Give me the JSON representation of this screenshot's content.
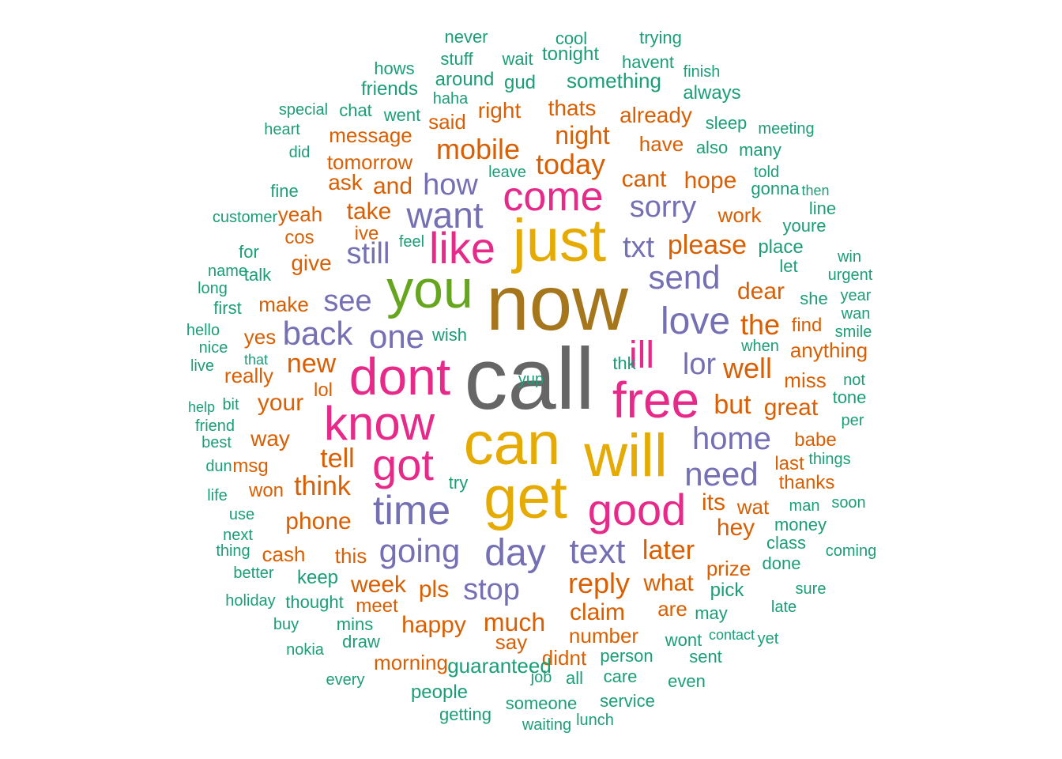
{
  "palette": {
    "teal": "#1b9e77",
    "orange": "#d95f02",
    "purple": "#7570b3",
    "pink": "#e7298a",
    "green": "#66a61e",
    "gold": "#e6ab02",
    "brown": "#a6761d",
    "gray": "#666666"
  },
  "words": [
    {
      "text": "call",
      "color": "gray"
    },
    {
      "text": "now",
      "color": "brown"
    },
    {
      "text": "can",
      "color": "gold"
    },
    {
      "text": "get",
      "color": "gold"
    },
    {
      "text": "will",
      "color": "gold"
    },
    {
      "text": "just",
      "color": "gold"
    },
    {
      "text": "you",
      "color": "green"
    },
    {
      "text": "dont",
      "color": "pink"
    },
    {
      "text": "free",
      "color": "pink"
    },
    {
      "text": "know",
      "color": "pink"
    },
    {
      "text": "got",
      "color": "pink"
    },
    {
      "text": "good",
      "color": "pink"
    },
    {
      "text": "like",
      "color": "pink"
    },
    {
      "text": "come",
      "color": "pink"
    },
    {
      "text": "ill",
      "color": "pink"
    },
    {
      "text": "time",
      "color": "purple"
    },
    {
      "text": "day",
      "color": "purple"
    },
    {
      "text": "love",
      "color": "purple"
    },
    {
      "text": "want",
      "color": "purple"
    },
    {
      "text": "going",
      "color": "purple"
    },
    {
      "text": "text",
      "color": "purple"
    },
    {
      "text": "need",
      "color": "purple"
    },
    {
      "text": "send",
      "color": "purple"
    },
    {
      "text": "home",
      "color": "purple"
    },
    {
      "text": "back",
      "color": "purple"
    },
    {
      "text": "stop",
      "color": "purple"
    },
    {
      "text": "one",
      "color": "purple"
    },
    {
      "text": "sorry",
      "color": "purple"
    },
    {
      "text": "how",
      "color": "purple"
    },
    {
      "text": "see",
      "color": "purple"
    },
    {
      "text": "still",
      "color": "purple"
    },
    {
      "text": "txt",
      "color": "purple"
    },
    {
      "text": "lor",
      "color": "purple"
    },
    {
      "text": "mobile",
      "color": "orange"
    },
    {
      "text": "reply",
      "color": "orange"
    },
    {
      "text": "today",
      "color": "orange"
    },
    {
      "text": "night",
      "color": "orange"
    },
    {
      "text": "please",
      "color": "orange"
    },
    {
      "text": "well",
      "color": "orange"
    },
    {
      "text": "the",
      "color": "orange"
    },
    {
      "text": "later",
      "color": "orange"
    },
    {
      "text": "think",
      "color": "orange"
    },
    {
      "text": "tell",
      "color": "orange"
    },
    {
      "text": "new",
      "color": "orange"
    },
    {
      "text": "phone",
      "color": "orange"
    },
    {
      "text": "much",
      "color": "orange"
    },
    {
      "text": "claim",
      "color": "orange"
    },
    {
      "text": "happy",
      "color": "orange"
    },
    {
      "text": "great",
      "color": "orange"
    },
    {
      "text": "but",
      "color": "orange"
    },
    {
      "text": "cant",
      "color": "orange"
    },
    {
      "text": "hope",
      "color": "orange"
    },
    {
      "text": "week",
      "color": "orange"
    },
    {
      "text": "what",
      "color": "orange"
    },
    {
      "text": "your",
      "color": "orange"
    },
    {
      "text": "dear",
      "color": "orange"
    },
    {
      "text": "take",
      "color": "orange"
    },
    {
      "text": "hey",
      "color": "orange"
    },
    {
      "text": "its",
      "color": "orange"
    },
    {
      "text": "work",
      "color": "orange"
    },
    {
      "text": "thats",
      "color": "orange"
    },
    {
      "text": "right",
      "color": "orange"
    },
    {
      "text": "message",
      "color": "orange"
    },
    {
      "text": "already",
      "color": "orange"
    },
    {
      "text": "have",
      "color": "orange"
    },
    {
      "text": "said",
      "color": "orange"
    },
    {
      "text": "tomorrow",
      "color": "orange"
    },
    {
      "text": "and",
      "color": "orange"
    },
    {
      "text": "ask",
      "color": "orange"
    },
    {
      "text": "yeah",
      "color": "orange"
    },
    {
      "text": "give",
      "color": "orange"
    },
    {
      "text": "make",
      "color": "orange"
    },
    {
      "text": "cos",
      "color": "orange"
    },
    {
      "text": "ive",
      "color": "orange"
    },
    {
      "text": "yes",
      "color": "orange"
    },
    {
      "text": "really",
      "color": "orange"
    },
    {
      "text": "lol",
      "color": "orange"
    },
    {
      "text": "way",
      "color": "orange"
    },
    {
      "text": "msg",
      "color": "orange"
    },
    {
      "text": "won",
      "color": "orange"
    },
    {
      "text": "cash",
      "color": "orange"
    },
    {
      "text": "this",
      "color": "orange"
    },
    {
      "text": "pls",
      "color": "orange"
    },
    {
      "text": "meet",
      "color": "orange"
    },
    {
      "text": "say",
      "color": "orange"
    },
    {
      "text": "number",
      "color": "orange"
    },
    {
      "text": "didnt",
      "color": "orange"
    },
    {
      "text": "morning",
      "color": "orange"
    },
    {
      "text": "are",
      "color": "orange"
    },
    {
      "text": "prize",
      "color": "orange"
    },
    {
      "text": "wat",
      "color": "orange"
    },
    {
      "text": "miss",
      "color": "orange"
    },
    {
      "text": "find",
      "color": "orange"
    },
    {
      "text": "anything",
      "color": "orange"
    },
    {
      "text": "babe",
      "color": "orange"
    },
    {
      "text": "last",
      "color": "orange"
    },
    {
      "text": "thanks",
      "color": "orange"
    },
    {
      "text": "never",
      "color": "teal"
    },
    {
      "text": "cool",
      "color": "teal"
    },
    {
      "text": "trying",
      "color": "teal"
    },
    {
      "text": "stuff",
      "color": "teal"
    },
    {
      "text": "wait",
      "color": "teal"
    },
    {
      "text": "tonight",
      "color": "teal"
    },
    {
      "text": "havent",
      "color": "teal"
    },
    {
      "text": "hows",
      "color": "teal"
    },
    {
      "text": "finish",
      "color": "teal"
    },
    {
      "text": "around",
      "color": "teal"
    },
    {
      "text": "gud",
      "color": "teal"
    },
    {
      "text": "something",
      "color": "teal"
    },
    {
      "text": "friends",
      "color": "teal"
    },
    {
      "text": "always",
      "color": "teal"
    },
    {
      "text": "haha",
      "color": "teal"
    },
    {
      "text": "special",
      "color": "teal"
    },
    {
      "text": "chat",
      "color": "teal"
    },
    {
      "text": "went",
      "color": "teal"
    },
    {
      "text": "sleep",
      "color": "teal"
    },
    {
      "text": "heart",
      "color": "teal"
    },
    {
      "text": "meeting",
      "color": "teal"
    },
    {
      "text": "also",
      "color": "teal"
    },
    {
      "text": "many",
      "color": "teal"
    },
    {
      "text": "did",
      "color": "teal"
    },
    {
      "text": "leave",
      "color": "teal"
    },
    {
      "text": "told",
      "color": "teal"
    },
    {
      "text": "fine",
      "color": "teal"
    },
    {
      "text": "gonna",
      "color": "teal"
    },
    {
      "text": "then",
      "color": "teal"
    },
    {
      "text": "line",
      "color": "teal"
    },
    {
      "text": "customer",
      "color": "teal"
    },
    {
      "text": "youre",
      "color": "teal"
    },
    {
      "text": "feel",
      "color": "teal"
    },
    {
      "text": "for",
      "color": "teal"
    },
    {
      "text": "place",
      "color": "teal"
    },
    {
      "text": "win",
      "color": "teal"
    },
    {
      "text": "name",
      "color": "teal"
    },
    {
      "text": "talk",
      "color": "teal"
    },
    {
      "text": "let",
      "color": "teal"
    },
    {
      "text": "urgent",
      "color": "teal"
    },
    {
      "text": "long",
      "color": "teal"
    },
    {
      "text": "year",
      "color": "teal"
    },
    {
      "text": "she",
      "color": "teal"
    },
    {
      "text": "first",
      "color": "teal"
    },
    {
      "text": "wan",
      "color": "teal"
    },
    {
      "text": "smile",
      "color": "teal"
    },
    {
      "text": "hello",
      "color": "teal"
    },
    {
      "text": "wish",
      "color": "teal"
    },
    {
      "text": "nice",
      "color": "teal"
    },
    {
      "text": "when",
      "color": "teal"
    },
    {
      "text": "that",
      "color": "teal"
    },
    {
      "text": "live",
      "color": "teal"
    },
    {
      "text": "thk",
      "color": "teal"
    },
    {
      "text": "not",
      "color": "teal"
    },
    {
      "text": "tone",
      "color": "teal"
    },
    {
      "text": "help",
      "color": "teal"
    },
    {
      "text": "bit",
      "color": "teal"
    },
    {
      "text": "per",
      "color": "teal"
    },
    {
      "text": "friend",
      "color": "teal"
    },
    {
      "text": "best",
      "color": "teal"
    },
    {
      "text": "things",
      "color": "teal"
    },
    {
      "text": "dun",
      "color": "teal"
    },
    {
      "text": "try",
      "color": "teal"
    },
    {
      "text": "life",
      "color": "teal"
    },
    {
      "text": "man",
      "color": "teal"
    },
    {
      "text": "soon",
      "color": "teal"
    },
    {
      "text": "use",
      "color": "teal"
    },
    {
      "text": "money",
      "color": "teal"
    },
    {
      "text": "next",
      "color": "teal"
    },
    {
      "text": "class",
      "color": "teal"
    },
    {
      "text": "thing",
      "color": "teal"
    },
    {
      "text": "coming",
      "color": "teal"
    },
    {
      "text": "better",
      "color": "teal"
    },
    {
      "text": "done",
      "color": "teal"
    },
    {
      "text": "keep",
      "color": "teal"
    },
    {
      "text": "pick",
      "color": "teal"
    },
    {
      "text": "sure",
      "color": "teal"
    },
    {
      "text": "holiday",
      "color": "teal"
    },
    {
      "text": "thought",
      "color": "teal"
    },
    {
      "text": "late",
      "color": "teal"
    },
    {
      "text": "may",
      "color": "teal"
    },
    {
      "text": "buy",
      "color": "teal"
    },
    {
      "text": "mins",
      "color": "teal"
    },
    {
      "text": "contact",
      "color": "teal"
    },
    {
      "text": "yet",
      "color": "teal"
    },
    {
      "text": "draw",
      "color": "teal"
    },
    {
      "text": "wont",
      "color": "teal"
    },
    {
      "text": "nokia",
      "color": "teal"
    },
    {
      "text": "person",
      "color": "teal"
    },
    {
      "text": "sent",
      "color": "teal"
    },
    {
      "text": "guaranteed",
      "color": "teal"
    },
    {
      "text": "every",
      "color": "teal"
    },
    {
      "text": "job",
      "color": "teal"
    },
    {
      "text": "all",
      "color": "teal"
    },
    {
      "text": "care",
      "color": "teal"
    },
    {
      "text": "even",
      "color": "teal"
    },
    {
      "text": "people",
      "color": "teal"
    },
    {
      "text": "someone",
      "color": "teal"
    },
    {
      "text": "service",
      "color": "teal"
    },
    {
      "text": "getting",
      "color": "teal"
    },
    {
      "text": "waiting",
      "color": "teal"
    },
    {
      "text": "lunch",
      "color": "teal"
    },
    {
      "text": "yup",
      "color": "teal"
    }
  ]
}
